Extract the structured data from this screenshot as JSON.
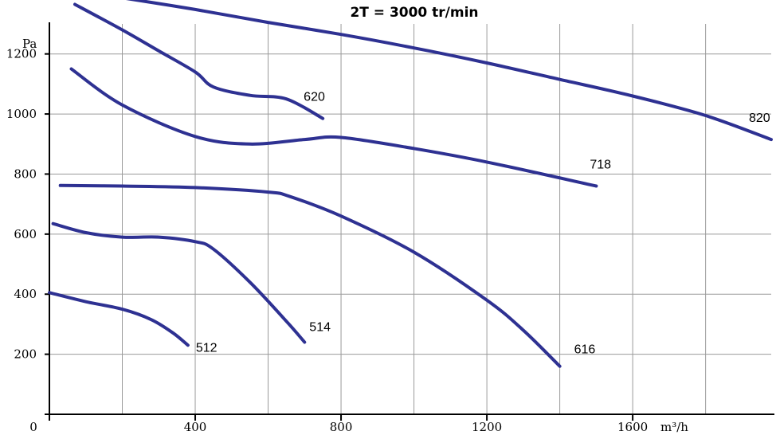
{
  "chart_data": {
    "type": "line",
    "title": "2T = 3000 tr/min",
    "x_unit": "m³/h",
    "y_unit": "Pa",
    "xlim": [
      0,
      1980
    ],
    "ylim": [
      0,
      1300
    ],
    "x_ticks": [
      0,
      400,
      800,
      1200,
      1600
    ],
    "x_tick_labels": [
      "0",
      "400",
      "800",
      "1200",
      "1600"
    ],
    "y_ticks": [
      200,
      400,
      600,
      800,
      1000,
      1200
    ],
    "y_tick_labels": [
      "200",
      "400",
      "600",
      "800",
      "1000",
      "1200"
    ],
    "x_grid": [
      200,
      400,
      600,
      800,
      1000,
      1200,
      1400,
      1600,
      1800
    ],
    "y_grid": [
      200,
      400,
      600,
      800,
      1000,
      1200
    ],
    "grid": true,
    "color": "#2e3192",
    "series": [
      {
        "name": "512",
        "x": [
          0,
          100,
          200,
          280,
          340,
          380
        ],
        "y": [
          405,
          375,
          350,
          315,
          270,
          230
        ]
      },
      {
        "name": "514",
        "x": [
          10,
          100,
          200,
          300,
          400,
          450,
          550,
          650,
          700
        ],
        "y": [
          635,
          605,
          590,
          590,
          575,
          550,
          440,
          310,
          240
        ]
      },
      {
        "name": "616",
        "x": [
          30,
          200,
          400,
          600,
          660,
          800,
          1000,
          1200,
          1300,
          1400
        ],
        "y": [
          762,
          760,
          755,
          740,
          725,
          660,
          540,
          380,
          280,
          160
        ]
      },
      {
        "name": "620",
        "x": [
          70,
          200,
          300,
          400,
          450,
          550,
          650,
          750
        ],
        "y": [
          1365,
          1280,
          1210,
          1140,
          1090,
          1062,
          1050,
          985
        ]
      },
      {
        "name": "718",
        "x": [
          60,
          200,
          400,
          550,
          700,
          800,
          1000,
          1200,
          1500
        ],
        "y": [
          1150,
          1030,
          925,
          900,
          915,
          922,
          885,
          840,
          760
        ]
      },
      {
        "name": "820",
        "x": [
          210,
          400,
          600,
          800,
          1000,
          1200,
          1400,
          1600,
          1800,
          1980
        ],
        "y": [
          1385,
          1348,
          1305,
          1265,
          1220,
          1170,
          1115,
          1060,
          995,
          915
        ]
      }
    ]
  }
}
